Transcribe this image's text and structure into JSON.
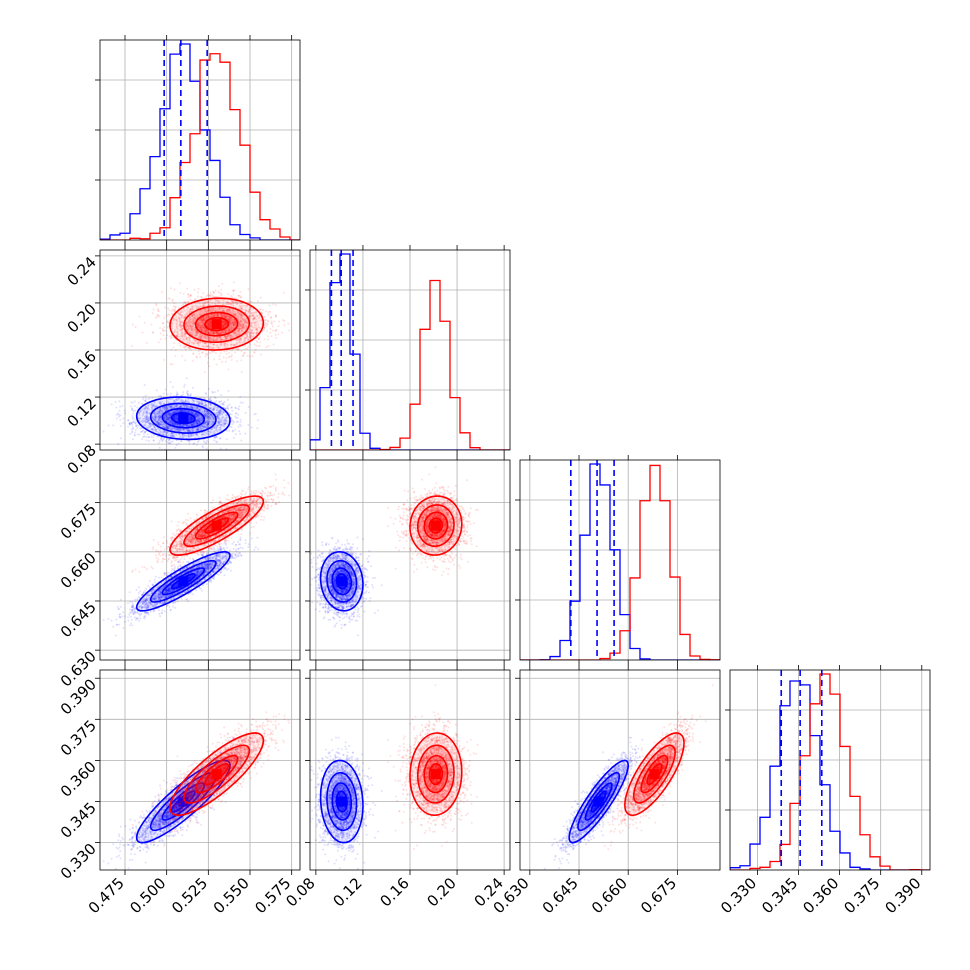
{
  "chart_data": {
    "type": "corner",
    "grid": true,
    "parameters": [
      {
        "range": [
          0.46,
          0.58
        ],
        "ticks": [
          "0.475",
          "0.500",
          "0.525",
          "0.550",
          "0.575"
        ],
        "tick_values": [
          0.475,
          0.5,
          0.525,
          0.55,
          0.575
        ]
      },
      {
        "range": [
          0.075,
          0.245
        ],
        "ticks": [
          "0.08",
          "0.12",
          "0.16",
          "0.20",
          "0.24"
        ],
        "tick_values": [
          0.08,
          0.12,
          0.16,
          0.2,
          0.24
        ]
      },
      {
        "range": [
          0.627,
          0.688
        ],
        "ticks": [
          "0.630",
          "0.645",
          "0.660",
          "0.675"
        ],
        "tick_values": [
          0.63,
          0.645,
          0.66,
          0.675
        ]
      },
      {
        "range": [
          0.32,
          0.393
        ],
        "ticks": [
          "0.330",
          "0.345",
          "0.360",
          "0.375",
          "0.390"
        ],
        "tick_values": [
          0.33,
          0.345,
          0.36,
          0.375,
          0.39
        ]
      }
    ],
    "series": [
      {
        "color": "#0000ff",
        "mean": [
          0.51,
          0.102,
          0.651,
          0.345
        ],
        "sd": [
          0.014,
          0.009,
          0.0045,
          0.0075
        ],
        "corr": {
          "0-2": 0.88,
          "0-3": 0.88,
          "2-3": 0.88,
          "0-1": -0.1
        },
        "quantiles": [
          [
            0.4985,
            0.5085,
            0.5243
          ],
          [
            0.0932,
            0.1015,
            0.1116
          ],
          [
            0.6425,
            0.6505,
            0.6557
          ],
          [
            0.3387,
            0.3456,
            0.3535
          ]
        ]
      },
      {
        "color": "#ff0000",
        "mean": [
          0.53,
          0.182,
          0.668,
          0.355
        ],
        "sd": [
          0.014,
          0.011,
          0.0045,
          0.0075
        ],
        "corr": {
          "0-2": 0.82,
          "0-3": 0.82,
          "2-3": 0.75,
          "0-1": 0.05
        }
      }
    ]
  }
}
